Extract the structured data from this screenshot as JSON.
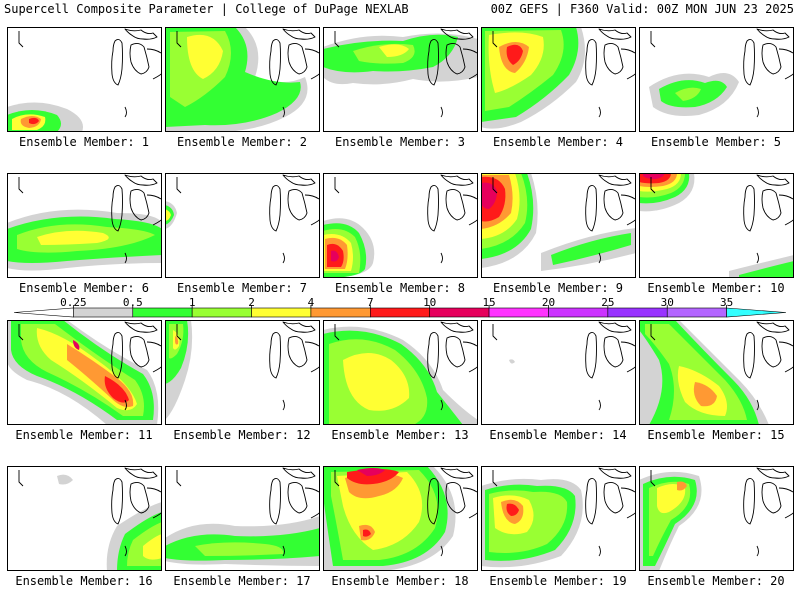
{
  "header": {
    "left": "Supercell Composite Parameter | College of DuPage NEXLAB",
    "right": "00Z GEFS | F360 Valid: 00Z MON JUN 23 2025"
  },
  "colors": {
    "grey": "#d3d3d3",
    "green": "#33ff33",
    "lightgreen": "#99ff33",
    "yellow": "#ffff33",
    "orange": "#ff9933",
    "red": "#ff1a1a",
    "crimson": "#e6005c",
    "magenta": "#ff33ff",
    "purple": "#9933ff",
    "lightpurple": "#b366ff",
    "cyan": "#33ffff"
  },
  "colorbar": {
    "labels": [
      "0.25",
      "0.5",
      "1",
      "2",
      "4",
      "7",
      "10",
      "15",
      "20",
      "25",
      "30",
      "35"
    ],
    "colors": [
      "#ffffff",
      "#d3d3d3",
      "#33ff33",
      "#99ff33",
      "#ffff33",
      "#ff9933",
      "#ff1a1a",
      "#e6005c",
      "#ff33ff",
      "#cc33ff",
      "#9933ff",
      "#b366ff",
      "#33ffff"
    ]
  },
  "panels": [
    {
      "label": "Ensemble Member: 1"
    },
    {
      "label": "Ensemble Member: 2"
    },
    {
      "label": "Ensemble Member: 3"
    },
    {
      "label": "Ensemble Member: 4"
    },
    {
      "label": "Ensemble Member: 5"
    },
    {
      "label": "Ensemble Member: 6"
    },
    {
      "label": "Ensemble Member: 7"
    },
    {
      "label": "Ensemble Member: 8"
    },
    {
      "label": "Ensemble Member: 9"
    },
    {
      "label": "Ensemble Member: 10"
    },
    {
      "label": "Ensemble Member: 11"
    },
    {
      "label": "Ensemble Member: 12"
    },
    {
      "label": "Ensemble Member: 13"
    },
    {
      "label": "Ensemble Member: 14"
    },
    {
      "label": "Ensemble Member: 15"
    },
    {
      "label": "Ensemble Member: 16"
    },
    {
      "label": "Ensemble Member: 17"
    },
    {
      "label": "Ensemble Member: 18"
    },
    {
      "label": "Ensemble Member: 19"
    },
    {
      "label": "Ensemble Member: 20"
    }
  ]
}
